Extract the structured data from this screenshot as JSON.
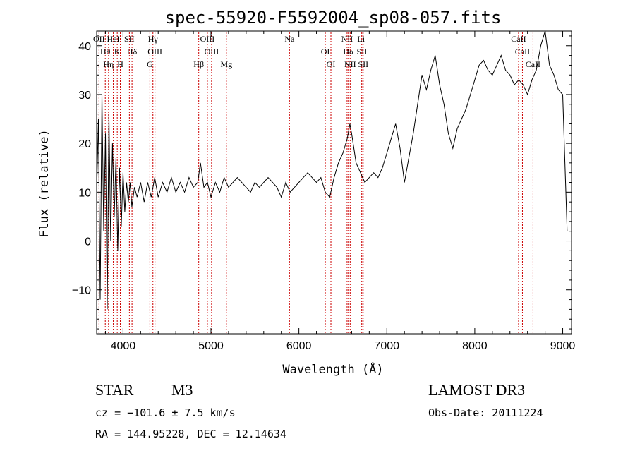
{
  "chart_data": {
    "type": "line",
    "title": "spec-55920-F5592004_sp08-057.fits",
    "xlabel": "Wavelength (Å)",
    "ylabel": "Flux (relative)",
    "xlim": [
      3700,
      9100
    ],
    "ylim": [
      -19,
      43
    ],
    "xticks": [
      4000,
      5000,
      6000,
      7000,
      8000,
      9000
    ],
    "xtick_labels": [
      "4000",
      "5000",
      "6000",
      "7000",
      "8000",
      "9000"
    ],
    "yticks": [
      -10,
      0,
      10,
      20,
      30,
      40
    ],
    "ytick_labels": [
      "−10",
      "0",
      "10",
      "20",
      "30",
      "40"
    ],
    "series": [
      {
        "name": "flux",
        "x": [
          3700,
          3720,
          3740,
          3760,
          3780,
          3800,
          3820,
          3840,
          3860,
          3880,
          3900,
          3920,
          3940,
          3960,
          3980,
          4000,
          4020,
          4040,
          4060,
          4080,
          4100,
          4130,
          4160,
          4200,
          4240,
          4280,
          4320,
          4360,
          4400,
          4450,
          4500,
          4550,
          4600,
          4650,
          4700,
          4750,
          4800,
          4850,
          4880,
          4920,
          4960,
          5000,
          5050,
          5100,
          5150,
          5200,
          5250,
          5300,
          5350,
          5400,
          5450,
          5500,
          5550,
          5600,
          5650,
          5700,
          5750,
          5800,
          5850,
          5900,
          5950,
          6000,
          6050,
          6100,
          6150,
          6200,
          6250,
          6300,
          6350,
          6400,
          6450,
          6500,
          6550,
          6580,
          6600,
          6650,
          6700,
          6750,
          6800,
          6850,
          6900,
          6950,
          7000,
          7050,
          7100,
          7150,
          7200,
          7250,
          7300,
          7350,
          7400,
          7450,
          7500,
          7550,
          7600,
          7650,
          7700,
          7750,
          7800,
          7850,
          7900,
          7950,
          8000,
          8050,
          8100,
          8150,
          8200,
          8250,
          8300,
          8350,
          8400,
          8450,
          8500,
          8550,
          8600,
          8650,
          8700,
          8750,
          8800,
          8850,
          8900,
          8950,
          9000,
          9050
        ],
        "y": [
          10,
          25,
          -12,
          30,
          2,
          22,
          -14,
          26,
          0,
          20,
          5,
          17,
          -2,
          15,
          3,
          14,
          6,
          12,
          8,
          12,
          7,
          11,
          9,
          12,
          8,
          12,
          9,
          13,
          9,
          12,
          10,
          13,
          10,
          12,
          10,
          13,
          11,
          12,
          16,
          11,
          12,
          9,
          12,
          10,
          13,
          11,
          12,
          13,
          12,
          11,
          10,
          12,
          11,
          12,
          13,
          12,
          11,
          9,
          12,
          10,
          11,
          12,
          13,
          14,
          13,
          12,
          13,
          10,
          9,
          13,
          16,
          18,
          21,
          24,
          22,
          16,
          14,
          12,
          13,
          14,
          13,
          15,
          18,
          21,
          24,
          19,
          12,
          17,
          22,
          28,
          34,
          31,
          35,
          38,
          32,
          28,
          22,
          19,
          23,
          25,
          27,
          30,
          33,
          36,
          37,
          35,
          34,
          36,
          38,
          35,
          34,
          32,
          33,
          32,
          30,
          33,
          35,
          40,
          43,
          36,
          34,
          31,
          30,
          2
        ]
      }
    ],
    "lines": [
      {
        "label": "OII",
        "x": 3727
      },
      {
        "label": "Hθ",
        "x": 3798
      },
      {
        "label": "Hη",
        "x": 3835
      },
      {
        "label": "HeI",
        "x": 3889
      },
      {
        "label": "K",
        "x": 3934
      },
      {
        "label": "H",
        "x": 3969
      },
      {
        "label": "SII",
        "x": 4072
      },
      {
        "label": "Hδ",
        "x": 4102
      },
      {
        "label": "G",
        "x": 4305
      },
      {
        "label": "Hγ",
        "x": 4340
      },
      {
        "label": "OIII",
        "x": 4363
      },
      {
        "label": "Hβ",
        "x": 4861
      },
      {
        "label": "OIII",
        "x": 4959
      },
      {
        "label": "OIII",
        "x": 5007
      },
      {
        "label": "Mg",
        "x": 5175
      },
      {
        "label": "Na",
        "x": 5893
      },
      {
        "label": "OI",
        "x": 6300
      },
      {
        "label": "OI",
        "x": 6364
      },
      {
        "label": "NII",
        "x": 6548
      },
      {
        "label": "Hα",
        "x": 6563
      },
      {
        "label": "NII",
        "x": 6583
      },
      {
        "label": "Li",
        "x": 6707
      },
      {
        "label": "SII",
        "x": 6716
      },
      {
        "label": "SII",
        "x": 6731
      },
      {
        "label": "CaII",
        "x": 8498
      },
      {
        "label": "CaII",
        "x": 8542
      },
      {
        "label": "CaII",
        "x": 8662
      }
    ]
  },
  "info": {
    "class": "STAR",
    "subclass": "M3",
    "survey": "LAMOST DR3",
    "cz": "cz = −101.6 ± 7.5 km/s",
    "obs_date": "Obs-Date: 20111224",
    "coords": "RA = 144.95228, DEC =  12.14634"
  }
}
